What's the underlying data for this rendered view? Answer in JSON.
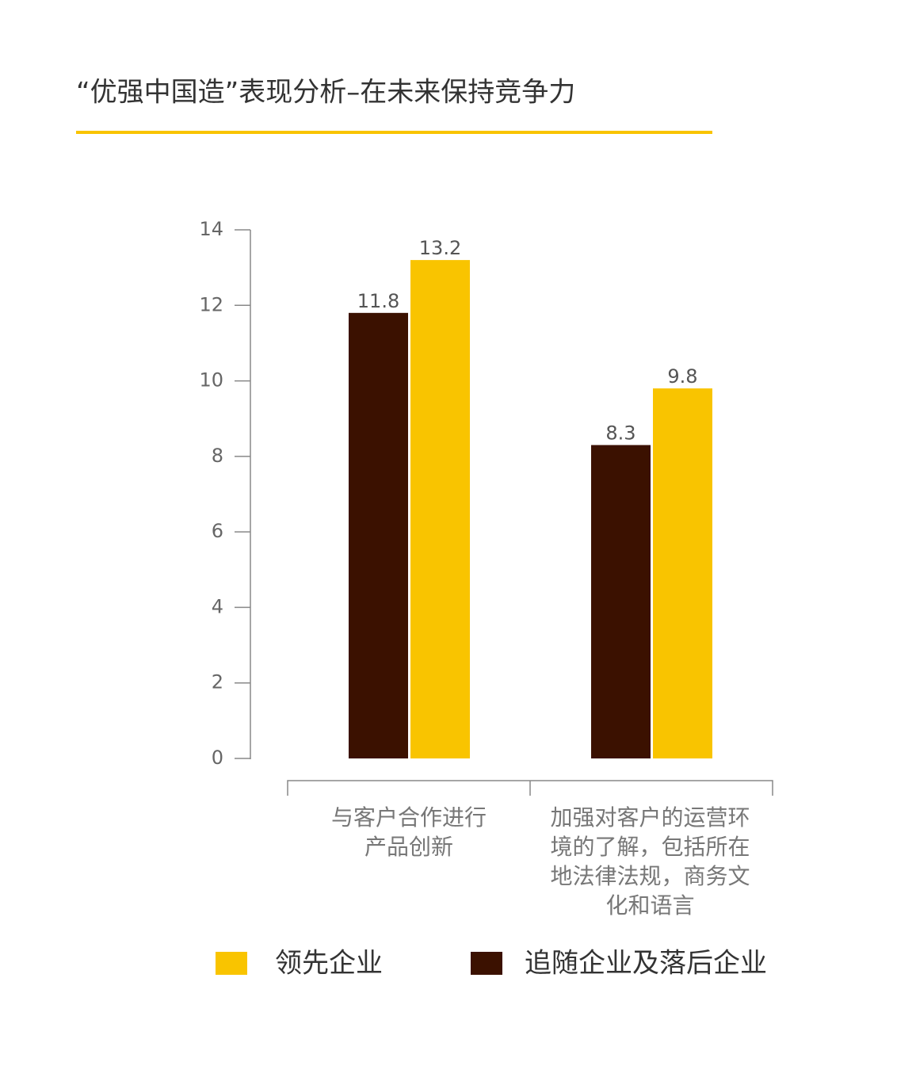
{
  "chart_data": {
    "type": "bar",
    "title": "“优强中国造”表现分析–在未来保持竞争力",
    "categories": [
      "与客户合作进行产品创新",
      "加强对客户的运营环境的了解，包括所在地法律法规，商务文化和语言"
    ],
    "series": [
      {
        "name": "追随企业及落后企业",
        "color": "#3b1100",
        "values": [
          11.8,
          8.3
        ]
      },
      {
        "name": "领先企业",
        "color": "#f9c400",
        "values": [
          13.2,
          9.8
        ]
      }
    ],
    "ylim": [
      0,
      14
    ],
    "yticks": [
      0,
      2,
      4,
      6,
      8,
      10,
      12,
      14
    ]
  }
}
